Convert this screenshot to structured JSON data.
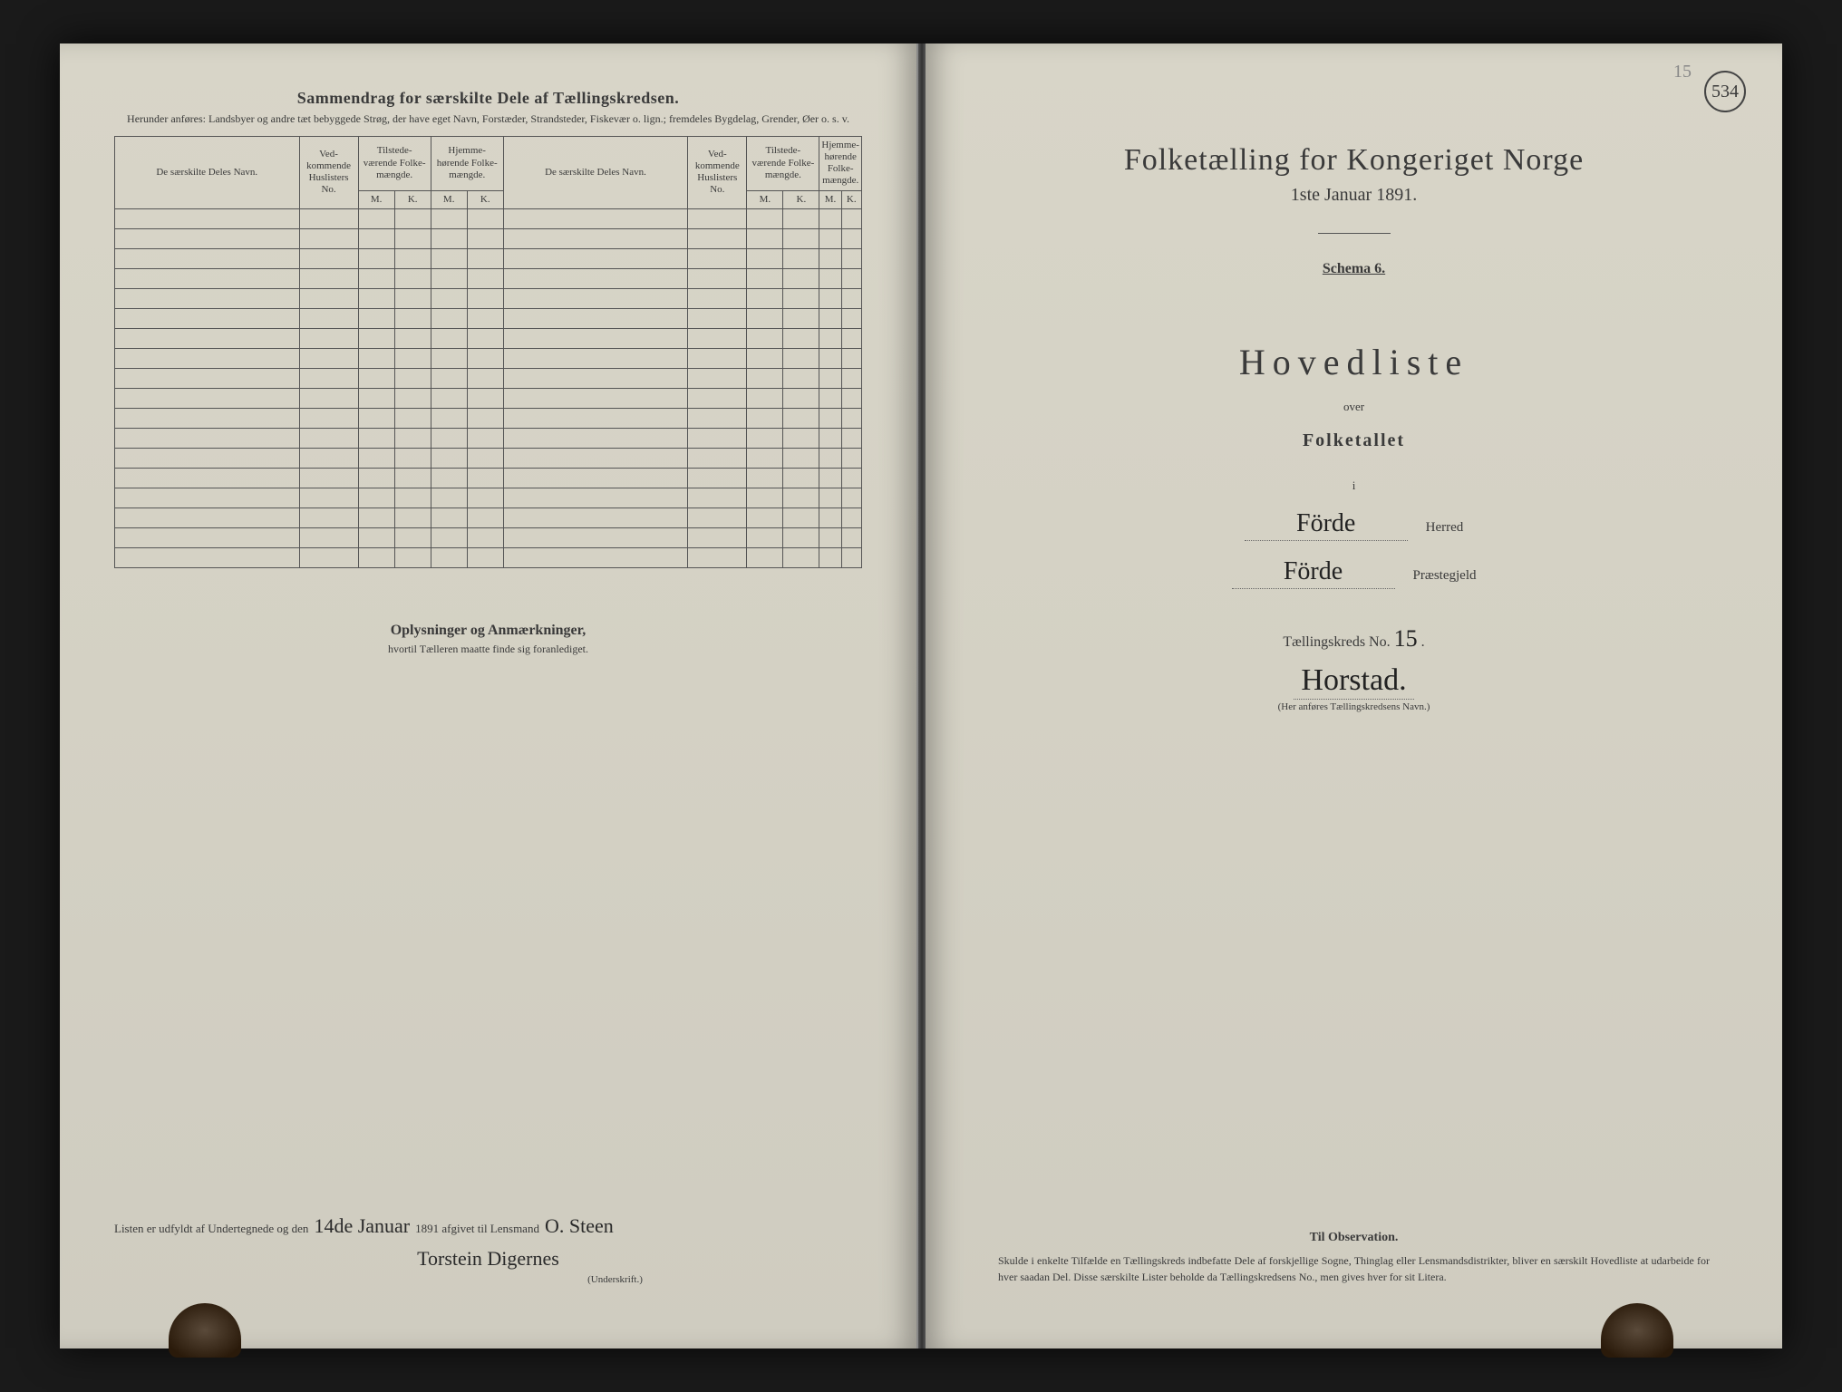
{
  "left": {
    "header_title": "Sammendrag for særskilte Dele af Tællingskredsen.",
    "header_subtitle": "Herunder anføres: Landsbyer og andre tæt bebyggede Strøg, der have eget Navn, Forstæder, Strandsteder, Fiskevær o. lign.; fremdeles Bygdelag, Grender, Øer o. s. v.",
    "table": {
      "col_name": "De særskilte Deles Navn.",
      "col_huslister": "Ved-kommende Huslisters No.",
      "col_tilstede": "Tilstede-værende Folke-mængde.",
      "col_hjemme": "Hjemme-hørende Folke-mængde.",
      "mk_m": "M.",
      "mk_k": "K.",
      "row_count": 18
    },
    "oplysninger_title": "Oplysninger og Anmærkninger,",
    "oplysninger_sub": "hvortil Tælleren maatte finde sig foranlediget.",
    "sig_prefix": "Listen er udfyldt af Undertegnede og den",
    "sig_date_hand": "14de Januar",
    "sig_mid": "1891 afgivet til Lensmand",
    "sig_lensmand": "O. Steen",
    "sig_name": "Torstein Digernes",
    "sig_caption": "(Underskrift.)"
  },
  "right": {
    "page_circle": "534",
    "pencil": "15",
    "title": "Folketælling for Kongeriget Norge",
    "date": "1ste Januar 1891.",
    "schema": "Schema 6.",
    "hovedliste": "Hovedliste",
    "over": "over",
    "folketallet": "Folketallet",
    "i": "i",
    "herred_value": "Förde",
    "herred_label": "Herred",
    "praestegjeld_value": "Förde",
    "praestegjeld_label": "Præstegjeld",
    "kreds_label": "Tællingskreds No.",
    "kreds_no": "15",
    "kreds_name": "Horstad.",
    "kreds_caption": "(Her anføres Tællingskredsens Navn.)",
    "obs_title": "Til Observation.",
    "obs_text": "Skulde i enkelte Tilfælde en Tællingskreds indbefatte Dele af forskjellige Sogne, Thinglag eller Lensmandsdistrikter, bliver en særskilt Hovedliste at udarbeide for hver saadan Del. Disse særskilte Lister beholde da Tællingskredsens No., men gives hver for sit Litera."
  }
}
